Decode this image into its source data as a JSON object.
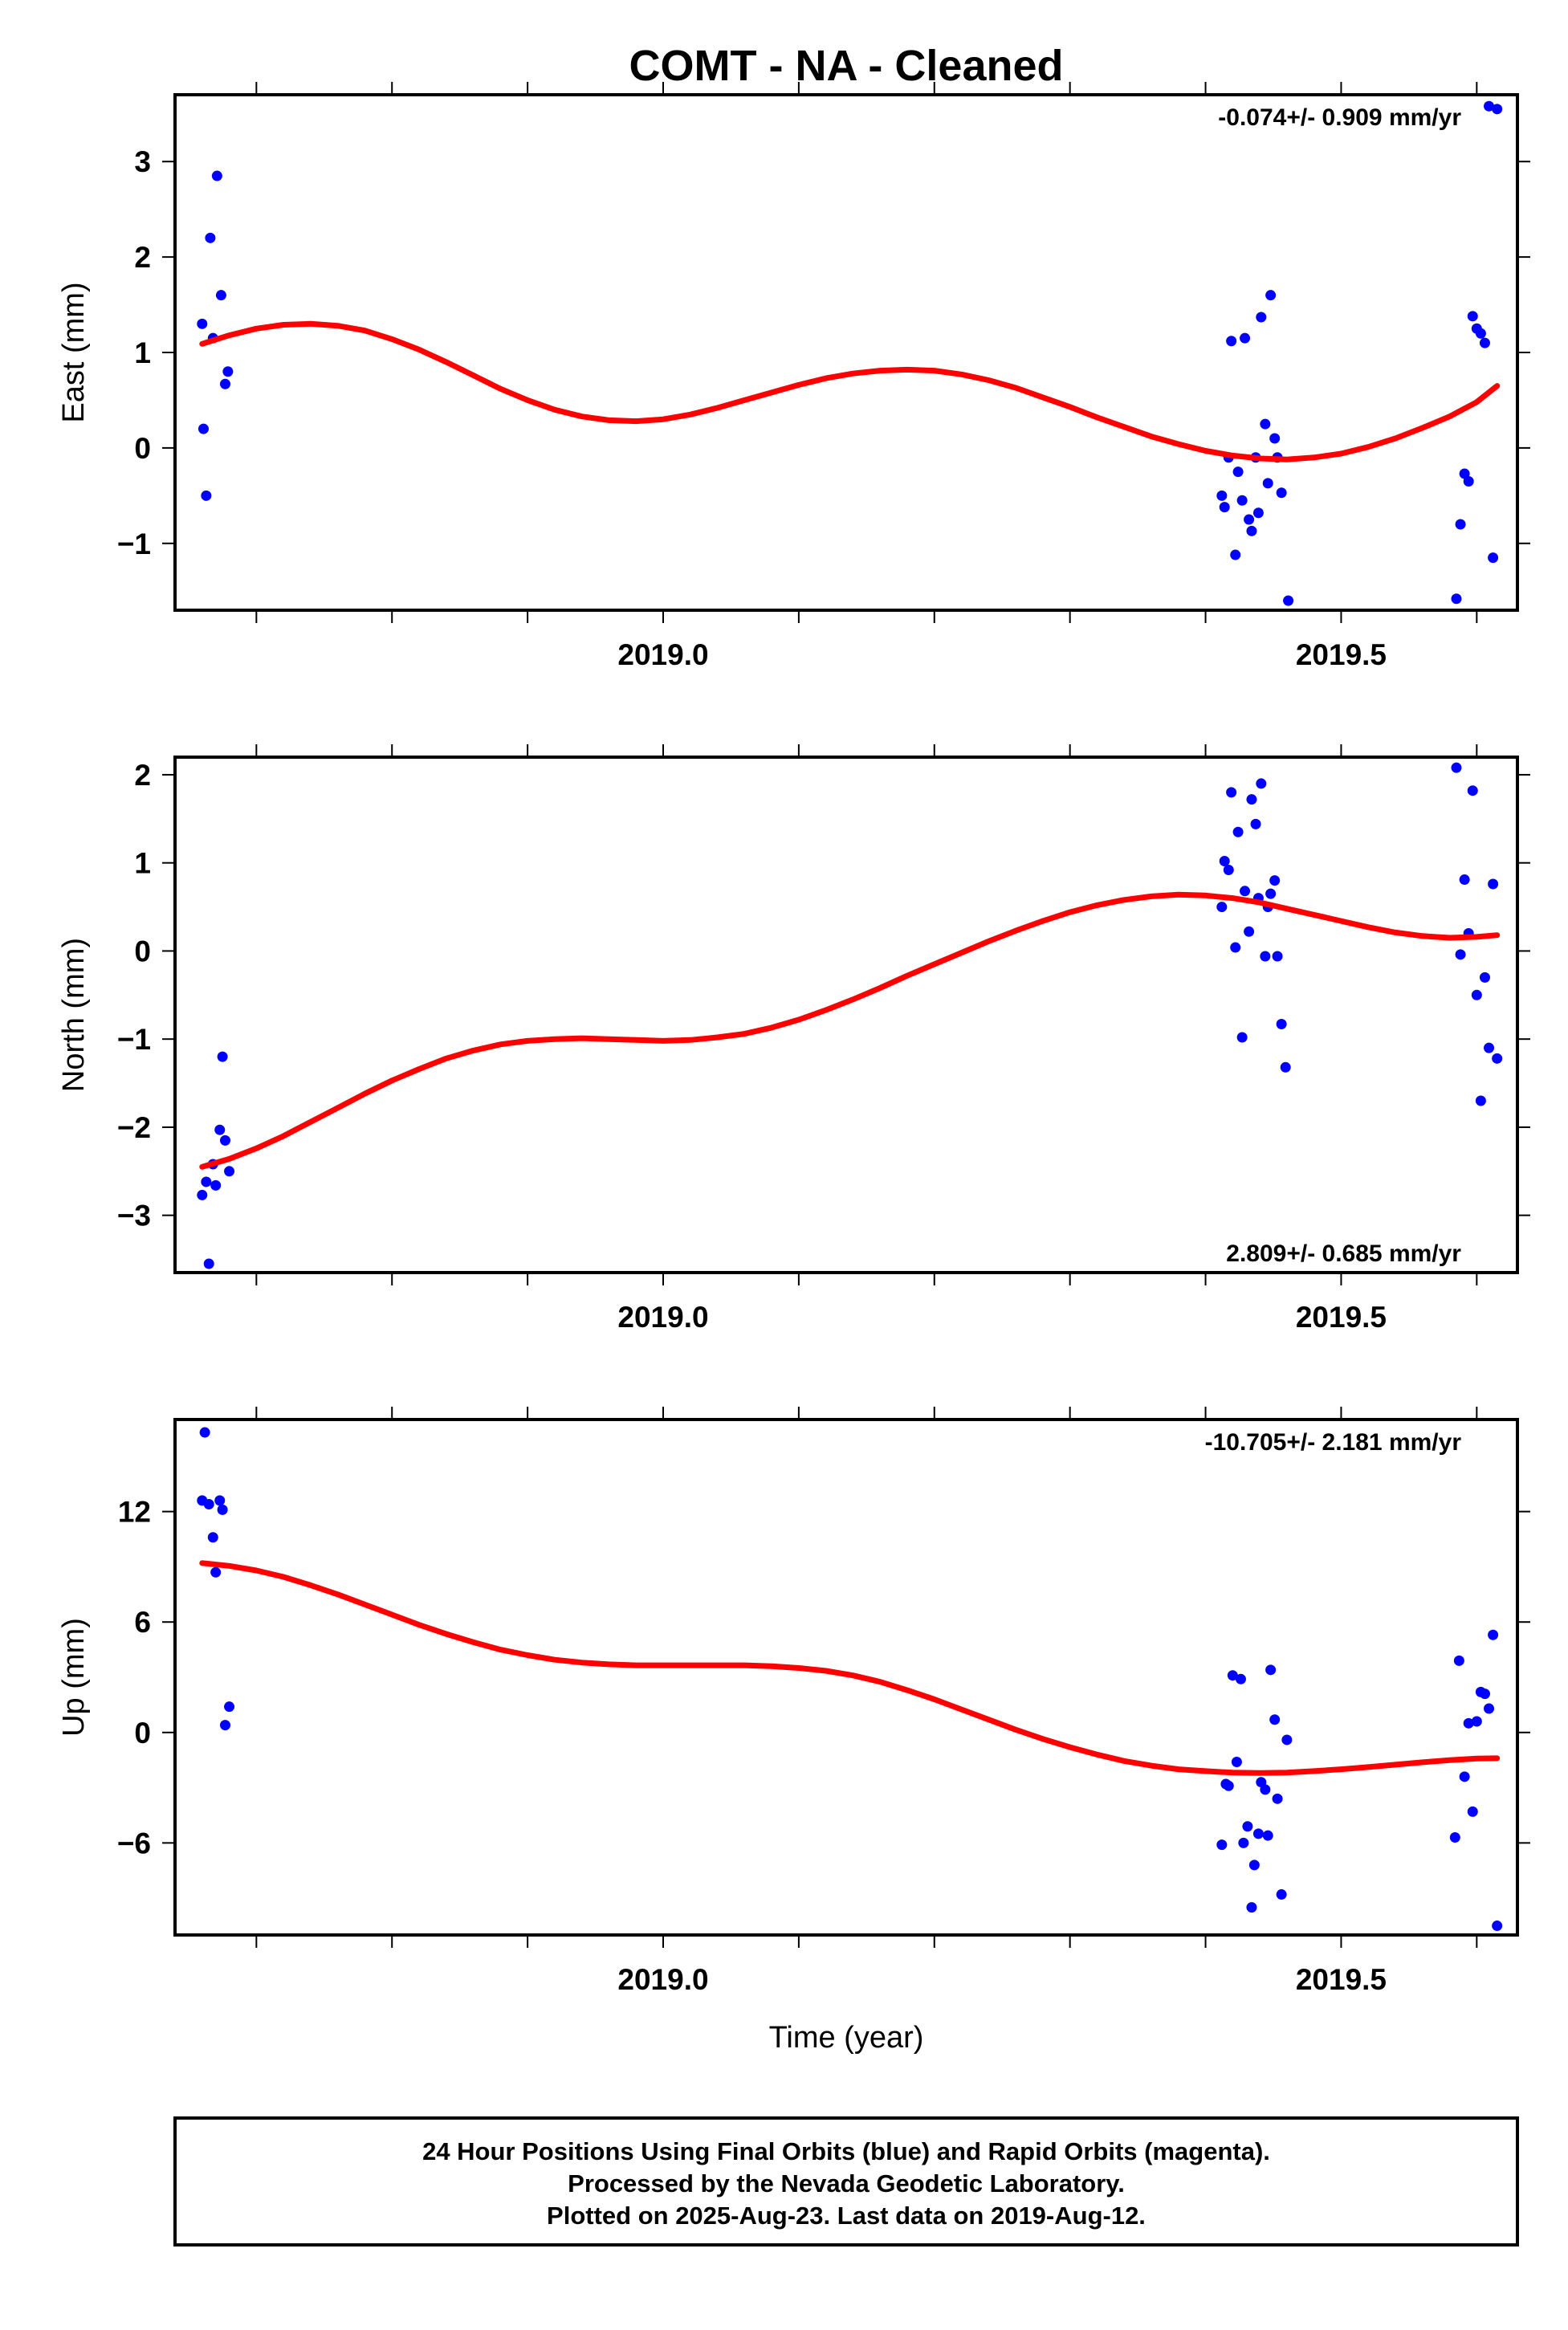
{
  "title": "COMT  - NA - Cleaned",
  "colors": {
    "points": "#0000ff",
    "fit": "#ff0000",
    "frame": "#000000"
  },
  "footer": {
    "line1": "24 Hour Positions Using Final Orbits (blue) and Rapid Orbits (magenta).",
    "line2": "Processed by the Nevada Geodetic Laboratory.",
    "line3": "Plotted on 2025-Aug-23. Last data on 2019-Aug-12."
  },
  "chart_data": [
    {
      "type": "scatter",
      "ylabel": "East (mm)",
      "xlabel": "",
      "rate_label": "-0.074+/- 0.909 mm/yr",
      "rate_position": "top-right",
      "xlim": [
        2018.64,
        2019.63
      ],
      "ylim": [
        -1.7,
        3.7
      ],
      "xticks_labeled": [
        2019.0,
        2019.5
      ],
      "xtick_labels": [
        "2019.0",
        "2019.5"
      ],
      "xticks_minor": [
        2018.7,
        2018.8,
        2018.9,
        2019.1,
        2019.2,
        2019.3,
        2019.4,
        2019.6
      ],
      "yticks": [
        -1,
        0,
        1,
        2,
        3
      ],
      "ytick_labels": [
        "−1",
        "0",
        "1",
        "2",
        "3"
      ],
      "points": [
        [
          2018.66,
          1.3
        ],
        [
          2018.661,
          0.2
        ],
        [
          2018.663,
          -0.5
        ],
        [
          2018.666,
          2.2
        ],
        [
          2018.668,
          1.15
        ],
        [
          2018.671,
          2.85
        ],
        [
          2018.674,
          1.6
        ],
        [
          2018.677,
          0.67
        ],
        [
          2018.679,
          0.8
        ],
        [
          2019.412,
          -0.5
        ],
        [
          2019.414,
          -0.62
        ],
        [
          2019.417,
          -0.1
        ],
        [
          2019.419,
          1.12
        ],
        [
          2019.422,
          -1.12
        ],
        [
          2019.424,
          -0.25
        ],
        [
          2019.427,
          -0.55
        ],
        [
          2019.429,
          1.15
        ],
        [
          2019.432,
          -0.75
        ],
        [
          2019.434,
          -0.87
        ],
        [
          2019.437,
          -0.1
        ],
        [
          2019.439,
          -0.68
        ],
        [
          2019.441,
          1.37
        ],
        [
          2019.444,
          0.25
        ],
        [
          2019.446,
          -0.37
        ],
        [
          2019.448,
          1.6
        ],
        [
          2019.451,
          0.1
        ],
        [
          2019.453,
          -0.1
        ],
        [
          2019.456,
          -0.47
        ],
        [
          2019.461,
          -1.6
        ],
        [
          2019.585,
          -1.58
        ],
        [
          2019.588,
          -0.8
        ],
        [
          2019.591,
          -0.27
        ],
        [
          2019.594,
          -0.35
        ],
        [
          2019.597,
          1.38
        ],
        [
          2019.6,
          1.25
        ],
        [
          2019.603,
          1.2
        ],
        [
          2019.606,
          1.1
        ],
        [
          2019.609,
          3.58
        ],
        [
          2019.612,
          -1.15
        ],
        [
          2019.615,
          3.55
        ]
      ],
      "fit": [
        [
          2018.66,
          1.09
        ],
        [
          2018.68,
          1.18
        ],
        [
          2018.7,
          1.25
        ],
        [
          2018.72,
          1.29
        ],
        [
          2018.74,
          1.3
        ],
        [
          2018.76,
          1.28
        ],
        [
          2018.78,
          1.23
        ],
        [
          2018.8,
          1.14
        ],
        [
          2018.82,
          1.03
        ],
        [
          2018.84,
          0.9
        ],
        [
          2018.86,
          0.76
        ],
        [
          2018.88,
          0.62
        ],
        [
          2018.9,
          0.5
        ],
        [
          2018.92,
          0.4
        ],
        [
          2018.94,
          0.33
        ],
        [
          2018.96,
          0.29
        ],
        [
          2018.98,
          0.28
        ],
        [
          2019.0,
          0.3
        ],
        [
          2019.02,
          0.35
        ],
        [
          2019.04,
          0.42
        ],
        [
          2019.06,
          0.5
        ],
        [
          2019.08,
          0.58
        ],
        [
          2019.1,
          0.66
        ],
        [
          2019.12,
          0.73
        ],
        [
          2019.14,
          0.78
        ],
        [
          2019.16,
          0.81
        ],
        [
          2019.18,
          0.82
        ],
        [
          2019.2,
          0.81
        ],
        [
          2019.22,
          0.77
        ],
        [
          2019.24,
          0.71
        ],
        [
          2019.26,
          0.63
        ],
        [
          2019.28,
          0.53
        ],
        [
          2019.3,
          0.43
        ],
        [
          2019.32,
          0.32
        ],
        [
          2019.34,
          0.22
        ],
        [
          2019.36,
          0.12
        ],
        [
          2019.38,
          0.04
        ],
        [
          2019.4,
          -0.03
        ],
        [
          2019.42,
          -0.08
        ],
        [
          2019.44,
          -0.11
        ],
        [
          2019.46,
          -0.12
        ],
        [
          2019.48,
          -0.1
        ],
        [
          2019.5,
          -0.06
        ],
        [
          2019.52,
          0.01
        ],
        [
          2019.54,
          0.1
        ],
        [
          2019.56,
          0.21
        ],
        [
          2019.58,
          0.33
        ],
        [
          2019.6,
          0.48
        ],
        [
          2019.615,
          0.65
        ]
      ]
    },
    {
      "type": "scatter",
      "ylabel": "North (mm)",
      "xlabel": "",
      "rate_label": "2.809+/- 0.685 mm/yr",
      "rate_position": "bottom-right",
      "xlim": [
        2018.64,
        2019.63
      ],
      "ylim": [
        -3.65,
        2.2
      ],
      "xticks_labeled": [
        2019.0,
        2019.5
      ],
      "xtick_labels": [
        "2019.0",
        "2019.5"
      ],
      "xticks_minor": [
        2018.7,
        2018.8,
        2018.9,
        2019.1,
        2019.2,
        2019.3,
        2019.4,
        2019.6
      ],
      "yticks": [
        -3,
        -2,
        -1,
        0,
        1,
        2
      ],
      "ytick_labels": [
        "−3",
        "−2",
        "−1",
        "0",
        "1",
        "2"
      ],
      "points": [
        [
          2018.66,
          -2.77
        ],
        [
          2018.663,
          -2.62
        ],
        [
          2018.665,
          -3.55
        ],
        [
          2018.668,
          -2.42
        ],
        [
          2018.67,
          -2.66
        ],
        [
          2018.673,
          -2.03
        ],
        [
          2018.675,
          -1.2
        ],
        [
          2018.677,
          -2.15
        ],
        [
          2018.68,
          -2.5
        ],
        [
          2019.412,
          0.5
        ],
        [
          2019.414,
          1.02
        ],
        [
          2019.417,
          0.92
        ],
        [
          2019.419,
          1.8
        ],
        [
          2019.422,
          0.04
        ],
        [
          2019.424,
          1.35
        ],
        [
          2019.427,
          -0.98
        ],
        [
          2019.429,
          0.68
        ],
        [
          2019.432,
          0.22
        ],
        [
          2019.434,
          1.72
        ],
        [
          2019.437,
          1.44
        ],
        [
          2019.439,
          0.6
        ],
        [
          2019.441,
          1.9
        ],
        [
          2019.444,
          -0.06
        ],
        [
          2019.446,
          0.5
        ],
        [
          2019.448,
          0.65
        ],
        [
          2019.451,
          0.8
        ],
        [
          2019.453,
          -0.06
        ],
        [
          2019.456,
          -0.83
        ],
        [
          2019.459,
          -1.32
        ],
        [
          2019.585,
          2.08
        ],
        [
          2019.588,
          -0.04
        ],
        [
          2019.591,
          0.81
        ],
        [
          2019.594,
          0.2
        ],
        [
          2019.597,
          1.82
        ],
        [
          2019.6,
          -0.5
        ],
        [
          2019.603,
          -1.7
        ],
        [
          2019.606,
          -0.3
        ],
        [
          2019.609,
          -1.1
        ],
        [
          2019.612,
          0.76
        ],
        [
          2019.615,
          -1.22
        ]
      ],
      "fit": [
        [
          2018.66,
          -2.45
        ],
        [
          2018.68,
          -2.36
        ],
        [
          2018.7,
          -2.24
        ],
        [
          2018.72,
          -2.1
        ],
        [
          2018.74,
          -1.94
        ],
        [
          2018.76,
          -1.78
        ],
        [
          2018.78,
          -1.62
        ],
        [
          2018.8,
          -1.47
        ],
        [
          2018.82,
          -1.34
        ],
        [
          2018.84,
          -1.22
        ],
        [
          2018.86,
          -1.13
        ],
        [
          2018.88,
          -1.06
        ],
        [
          2018.9,
          -1.02
        ],
        [
          2018.92,
          -1.0
        ],
        [
          2018.94,
          -0.99
        ],
        [
          2018.96,
          -1.0
        ],
        [
          2018.98,
          -1.01
        ],
        [
          2019.0,
          -1.02
        ],
        [
          2019.02,
          -1.01
        ],
        [
          2019.04,
          -0.98
        ],
        [
          2019.06,
          -0.94
        ],
        [
          2019.08,
          -0.87
        ],
        [
          2019.1,
          -0.78
        ],
        [
          2019.12,
          -0.67
        ],
        [
          2019.14,
          -0.55
        ],
        [
          2019.16,
          -0.42
        ],
        [
          2019.18,
          -0.28
        ],
        [
          2019.2,
          -0.15
        ],
        [
          2019.22,
          -0.02
        ],
        [
          2019.24,
          0.11
        ],
        [
          2019.26,
          0.23
        ],
        [
          2019.28,
          0.34
        ],
        [
          2019.3,
          0.44
        ],
        [
          2019.32,
          0.52
        ],
        [
          2019.34,
          0.58
        ],
        [
          2019.36,
          0.62
        ],
        [
          2019.38,
          0.64
        ],
        [
          2019.4,
          0.63
        ],
        [
          2019.42,
          0.6
        ],
        [
          2019.44,
          0.55
        ],
        [
          2019.46,
          0.48
        ],
        [
          2019.48,
          0.41
        ],
        [
          2019.5,
          0.34
        ],
        [
          2019.52,
          0.27
        ],
        [
          2019.54,
          0.21
        ],
        [
          2019.56,
          0.17
        ],
        [
          2019.58,
          0.15
        ],
        [
          2019.6,
          0.16
        ],
        [
          2019.615,
          0.18
        ]
      ]
    },
    {
      "type": "scatter",
      "ylabel": "Up (mm)",
      "xlabel": "Time (year)",
      "rate_label": "-10.705+/- 2.181 mm/yr",
      "rate_position": "top-right",
      "xlim": [
        2018.64,
        2019.63
      ],
      "ylim": [
        -11,
        17
      ],
      "xticks_labeled": [
        2019.0,
        2019.5
      ],
      "xtick_labels": [
        "2019.0",
        "2019.5"
      ],
      "xticks_minor": [
        2018.7,
        2018.8,
        2018.9,
        2019.1,
        2019.2,
        2019.3,
        2019.4,
        2019.6
      ],
      "yticks": [
        -6,
        0,
        6,
        12
      ],
      "ytick_labels": [
        "−6",
        "0",
        "6",
        "12"
      ],
      "points": [
        [
          2018.66,
          12.6
        ],
        [
          2018.662,
          16.3
        ],
        [
          2018.665,
          12.4
        ],
        [
          2018.668,
          10.6
        ],
        [
          2018.67,
          8.7
        ],
        [
          2018.673,
          12.6
        ],
        [
          2018.675,
          12.1
        ],
        [
          2018.677,
          0.4
        ],
        [
          2018.68,
          1.4
        ],
        [
          2019.412,
          -6.1
        ],
        [
          2019.415,
          -2.8
        ],
        [
          2019.417,
          -2.9
        ],
        [
          2019.42,
          3.1
        ],
        [
          2019.423,
          -1.6
        ],
        [
          2019.426,
          2.9
        ],
        [
          2019.428,
          -6.0
        ],
        [
          2019.431,
          -5.1
        ],
        [
          2019.434,
          -9.5
        ],
        [
          2019.436,
          -7.2
        ],
        [
          2019.439,
          -5.5
        ],
        [
          2019.441,
          -2.7
        ],
        [
          2019.444,
          -3.1
        ],
        [
          2019.446,
          -5.6
        ],
        [
          2019.448,
          3.4
        ],
        [
          2019.451,
          0.7
        ],
        [
          2019.453,
          -3.6
        ],
        [
          2019.456,
          -8.8
        ],
        [
          2019.46,
          -0.4
        ],
        [
          2019.584,
          -5.7
        ],
        [
          2019.587,
          3.9
        ],
        [
          2019.591,
          -2.4
        ],
        [
          2019.594,
          0.5
        ],
        [
          2019.597,
          -4.3
        ],
        [
          2019.6,
          0.6
        ],
        [
          2019.603,
          2.2
        ],
        [
          2019.606,
          2.1
        ],
        [
          2019.609,
          1.3
        ],
        [
          2019.612,
          5.3
        ],
        [
          2019.615,
          -10.5
        ]
      ],
      "fit": [
        [
          2018.66,
          9.2
        ],
        [
          2018.68,
          9.05
        ],
        [
          2018.7,
          8.8
        ],
        [
          2018.72,
          8.45
        ],
        [
          2018.74,
          8.0
        ],
        [
          2018.76,
          7.5
        ],
        [
          2018.78,
          6.95
        ],
        [
          2018.8,
          6.4
        ],
        [
          2018.82,
          5.85
        ],
        [
          2018.84,
          5.35
        ],
        [
          2018.86,
          4.9
        ],
        [
          2018.88,
          4.5
        ],
        [
          2018.9,
          4.2
        ],
        [
          2018.92,
          3.95
        ],
        [
          2018.94,
          3.8
        ],
        [
          2018.96,
          3.7
        ],
        [
          2018.98,
          3.65
        ],
        [
          2019.0,
          3.65
        ],
        [
          2019.02,
          3.65
        ],
        [
          2019.04,
          3.65
        ],
        [
          2019.06,
          3.65
        ],
        [
          2019.08,
          3.6
        ],
        [
          2019.1,
          3.5
        ],
        [
          2019.12,
          3.35
        ],
        [
          2019.14,
          3.1
        ],
        [
          2019.16,
          2.75
        ],
        [
          2019.18,
          2.3
        ],
        [
          2019.2,
          1.8
        ],
        [
          2019.22,
          1.25
        ],
        [
          2019.24,
          0.7
        ],
        [
          2019.26,
          0.15
        ],
        [
          2019.28,
          -0.35
        ],
        [
          2019.3,
          -0.8
        ],
        [
          2019.32,
          -1.2
        ],
        [
          2019.34,
          -1.55
        ],
        [
          2019.36,
          -1.8
        ],
        [
          2019.38,
          -2.0
        ],
        [
          2019.4,
          -2.1
        ],
        [
          2019.42,
          -2.18
        ],
        [
          2019.44,
          -2.2
        ],
        [
          2019.46,
          -2.18
        ],
        [
          2019.48,
          -2.1
        ],
        [
          2019.5,
          -2.0
        ],
        [
          2019.52,
          -1.88
        ],
        [
          2019.54,
          -1.75
        ],
        [
          2019.56,
          -1.62
        ],
        [
          2019.58,
          -1.5
        ],
        [
          2019.6,
          -1.42
        ],
        [
          2019.615,
          -1.4
        ]
      ]
    }
  ]
}
